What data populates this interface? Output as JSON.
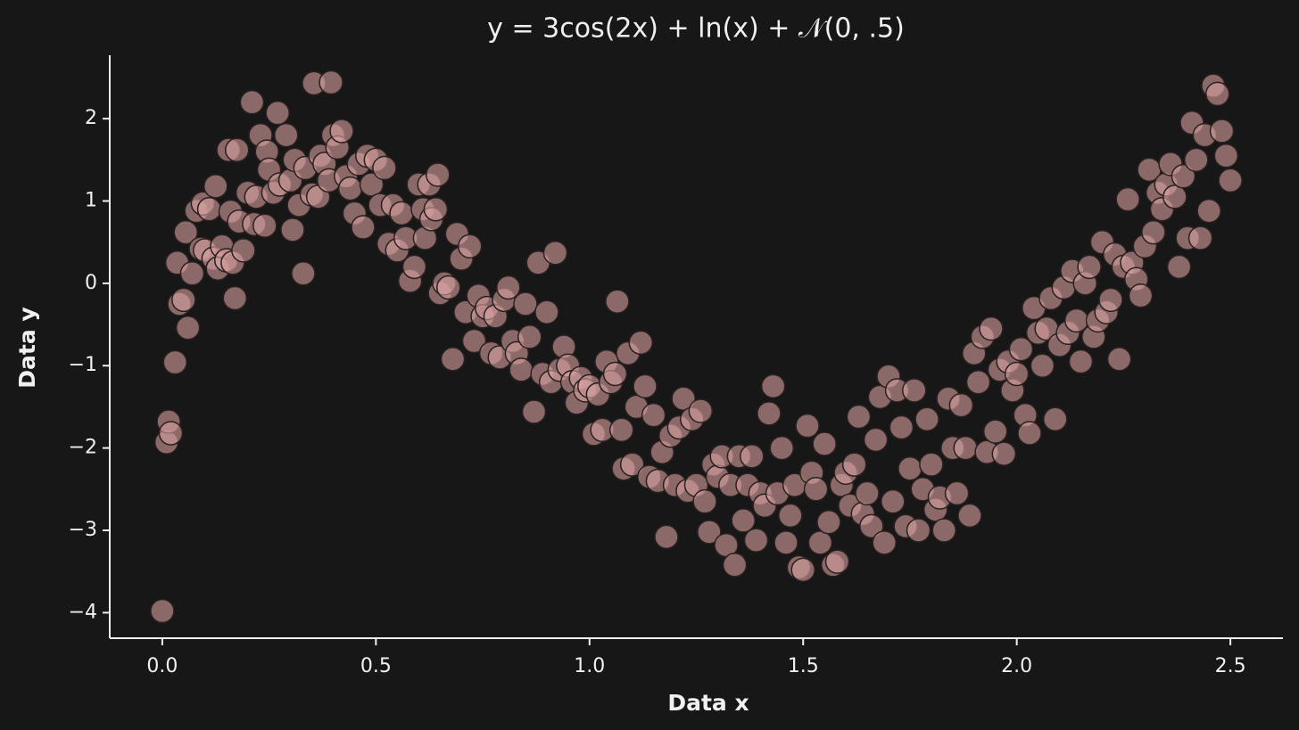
{
  "chart_data": {
    "type": "scatter",
    "title": "y = 3cos(2x) + ln(x) + 𝒩(0, .5)",
    "x_label": "Data x",
    "y_label": "Data y",
    "color": "#d9a0a0",
    "edge_color": "#2a2020",
    "xlim": [
      -0.123,
      2.623
    ],
    "ylim": [
      -4.31,
      2.77
    ],
    "xticks": [
      {
        "value": 0,
        "label": "0.0"
      },
      0.5,
      {
        "value": 1,
        "label": "1.0"
      },
      1.5,
      {
        "value": 2,
        "label": "2.0"
      },
      2.5
    ],
    "yticks": [
      {
        "value": -4,
        "label": "−4"
      },
      {
        "value": -3,
        "label": "−3"
      },
      {
        "value": -2,
        "label": "−2"
      },
      {
        "value": -1,
        "label": "−1"
      },
      0,
      1,
      2
    ],
    "x": [
      0.0,
      0.01,
      0.015,
      0.02,
      0.03,
      0.035,
      0.04,
      0.05,
      0.055,
      0.06,
      0.07,
      0.08,
      0.09,
      0.095,
      0.1,
      0.11,
      0.12,
      0.125,
      0.13,
      0.14,
      0.15,
      0.155,
      0.16,
      0.165,
      0.17,
      0.175,
      0.18,
      0.19,
      0.2,
      0.21,
      0.215,
      0.22,
      0.23,
      0.24,
      0.245,
      0.25,
      0.26,
      0.27,
      0.275,
      0.29,
      0.3,
      0.305,
      0.31,
      0.32,
      0.33,
      0.335,
      0.35,
      0.355,
      0.365,
      0.37,
      0.38,
      0.39,
      0.395,
      0.4,
      0.41,
      0.42,
      0.43,
      0.44,
      0.45,
      0.46,
      0.47,
      0.48,
      0.49,
      0.5,
      0.51,
      0.52,
      0.53,
      0.54,
      0.55,
      0.56,
      0.57,
      0.58,
      0.59,
      0.6,
      0.61,
      0.615,
      0.625,
      0.63,
      0.64,
      0.645,
      0.65,
      0.66,
      0.67,
      0.68,
      0.69,
      0.7,
      0.71,
      0.72,
      0.73,
      0.74,
      0.75,
      0.76,
      0.77,
      0.78,
      0.79,
      0.8,
      0.81,
      0.82,
      0.83,
      0.84,
      0.85,
      0.86,
      0.87,
      0.88,
      0.89,
      0.9,
      0.91,
      0.92,
      0.93,
      0.94,
      0.95,
      0.96,
      0.97,
      0.98,
      0.99,
      1.0,
      1.01,
      1.02,
      1.03,
      1.04,
      1.05,
      1.06,
      1.065,
      1.075,
      1.08,
      1.09,
      1.1,
      1.11,
      1.12,
      1.13,
      1.14,
      1.15,
      1.16,
      1.17,
      1.18,
      1.19,
      1.2,
      1.21,
      1.22,
      1.23,
      1.24,
      1.25,
      1.26,
      1.27,
      1.28,
      1.29,
      1.3,
      1.31,
      1.32,
      1.33,
      1.34,
      1.35,
      1.36,
      1.37,
      1.38,
      1.39,
      1.4,
      1.41,
      1.42,
      1.43,
      1.44,
      1.45,
      1.46,
      1.47,
      1.48,
      1.49,
      1.5,
      1.51,
      1.52,
      1.53,
      1.54,
      1.55,
      1.56,
      1.57,
      1.58,
      1.59,
      1.6,
      1.61,
      1.62,
      1.63,
      1.64,
      1.65,
      1.66,
      1.67,
      1.68,
      1.69,
      1.7,
      1.71,
      1.72,
      1.73,
      1.74,
      1.75,
      1.76,
      1.77,
      1.78,
      1.79,
      1.8,
      1.81,
      1.82,
      1.83,
      1.84,
      1.85,
      1.86,
      1.87,
      1.88,
      1.89,
      1.9,
      1.91,
      1.92,
      1.93,
      1.94,
      1.95,
      1.96,
      1.97,
      1.98,
      1.99,
      2.0,
      2.01,
      2.02,
      2.03,
      2.04,
      2.05,
      2.06,
      2.07,
      2.08,
      2.09,
      2.1,
      2.11,
      2.12,
      2.13,
      2.14,
      2.15,
      2.16,
      2.17,
      2.18,
      2.19,
      2.2,
      2.21,
      2.22,
      2.23,
      2.24,
      2.25,
      2.26,
      2.27,
      2.28,
      2.29,
      2.3,
      2.31,
      2.32,
      2.33,
      2.34,
      2.35,
      2.36,
      2.37,
      2.38,
      2.39,
      2.4,
      2.41,
      2.42,
      2.43,
      2.44,
      2.45,
      2.46,
      2.47,
      2.48,
      2.49,
      2.5
    ],
    "values": [
      -3.98,
      -1.93,
      -1.68,
      -1.82,
      -0.96,
      0.25,
      -0.25,
      -0.2,
      0.62,
      -0.54,
      0.12,
      0.88,
      0.42,
      0.97,
      0.4,
      0.9,
      0.3,
      1.18,
      0.18,
      0.45,
      0.28,
      1.62,
      0.87,
      0.25,
      -0.18,
      1.62,
      0.75,
      0.4,
      1.1,
      2.2,
      0.72,
      1.05,
      1.8,
      0.7,
      1.6,
      1.38,
      1.1,
      2.07,
      1.2,
      1.8,
      1.25,
      0.65,
      1.5,
      0.95,
      0.12,
      1.4,
      1.08,
      2.43,
      1.05,
      1.55,
      1.45,
      1.25,
      2.44,
      1.8,
      1.65,
      1.85,
      1.3,
      1.15,
      0.85,
      1.45,
      0.68,
      1.55,
      1.2,
      1.5,
      0.95,
      1.4,
      0.48,
      0.95,
      0.4,
      0.85,
      0.55,
      0.03,
      0.2,
      1.2,
      0.9,
      0.55,
      1.2,
      0.78,
      0.9,
      1.32,
      -0.12,
      0.0,
      -0.05,
      -0.92,
      0.6,
      0.3,
      -0.35,
      0.45,
      -0.7,
      -0.15,
      -0.4,
      -0.3,
      -0.85,
      -0.4,
      -0.9,
      -0.2,
      -0.05,
      -0.7,
      -0.85,
      -1.05,
      -0.25,
      -0.65,
      -1.56,
      0.25,
      -1.1,
      -0.35,
      -1.2,
      0.37,
      -1.05,
      -0.77,
      -1.0,
      -1.2,
      -1.45,
      -1.15,
      -1.3,
      -1.25,
      -1.83,
      -1.35,
      -1.78,
      -0.95,
      -1.2,
      -1.1,
      -0.22,
      -1.78,
      -2.25,
      -0.85,
      -2.2,
      -1.5,
      -0.72,
      -1.25,
      -2.35,
      -1.6,
      -2.4,
      -2.05,
      -3.08,
      -1.85,
      -2.45,
      -1.75,
      -1.4,
      -2.52,
      -1.65,
      -2.45,
      -1.55,
      -2.65,
      -3.02,
      -2.2,
      -2.35,
      -2.1,
      -3.18,
      -2.45,
      -3.42,
      -2.1,
      -2.88,
      -2.45,
      -2.1,
      -3.12,
      -2.55,
      -2.7,
      -1.58,
      -1.25,
      -2.55,
      -2.0,
      -3.15,
      -2.82,
      -2.45,
      -3.45,
      -3.48,
      -1.73,
      -2.3,
      -2.5,
      -3.15,
      -1.95,
      -2.9,
      -3.42,
      -3.38,
      -2.45,
      -2.3,
      -2.7,
      -2.2,
      -1.62,
      -2.8,
      -2.55,
      -2.95,
      -1.9,
      -1.38,
      -3.15,
      -1.13,
      -2.65,
      -1.3,
      -1.75,
      -2.95,
      -2.25,
      -1.3,
      -3.0,
      -2.5,
      -1.65,
      -2.2,
      -2.75,
      -2.6,
      -3.0,
      -1.4,
      -2.0,
      -2.55,
      -1.48,
      -2.0,
      -2.82,
      -0.85,
      -1.2,
      -0.65,
      -2.05,
      -0.55,
      -1.8,
      -1.05,
      -2.07,
      -0.95,
      -1.3,
      -1.1,
      -0.8,
      -1.6,
      -1.82,
      -0.3,
      -0.6,
      -1.0,
      -0.55,
      -0.18,
      -1.65,
      -0.75,
      -0.05,
      -0.6,
      0.15,
      -0.45,
      -0.95,
      0.0,
      0.2,
      -0.65,
      -0.45,
      0.5,
      -0.35,
      -0.2,
      0.35,
      -0.92,
      0.2,
      1.02,
      0.25,
      0.05,
      -0.15,
      0.45,
      1.38,
      0.62,
      1.1,
      0.9,
      1.2,
      1.45,
      1.05,
      0.2,
      1.3,
      0.55,
      1.95,
      1.5,
      0.55,
      1.8,
      0.88,
      2.4,
      2.3,
      1.85,
      1.55,
      1.25
    ]
  }
}
